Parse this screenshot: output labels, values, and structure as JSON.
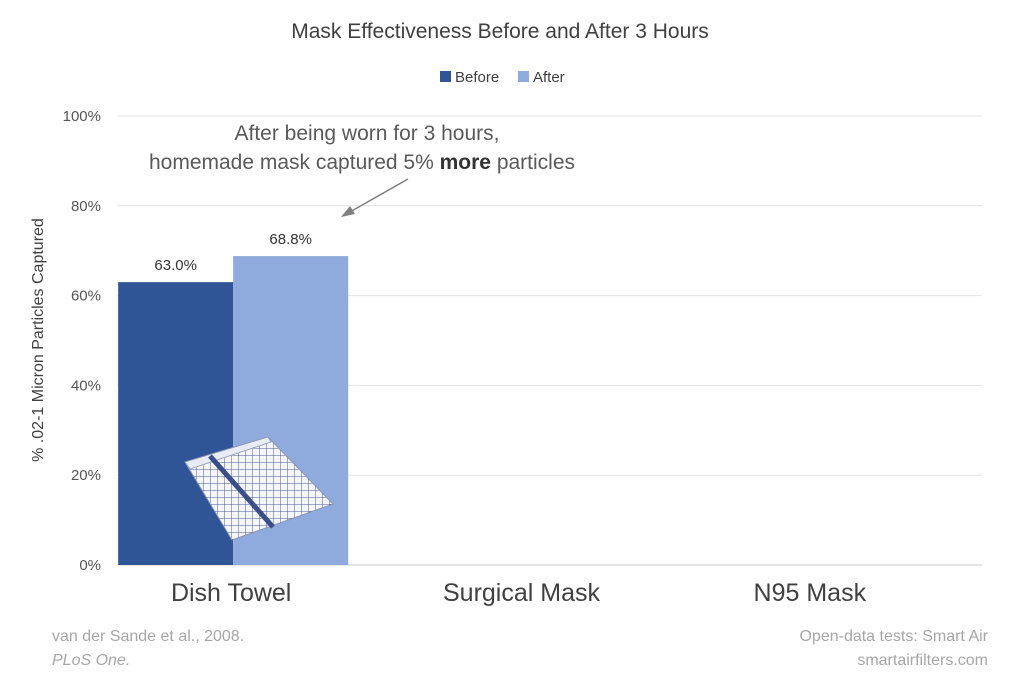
{
  "chart_data": {
    "type": "bar",
    "title": "Mask Effectiveness Before and After 3 Hours",
    "xlabel": "",
    "ylabel": "% .02-1 Micron Particles Captured",
    "categories": [
      "Dish Towel",
      "Surgical Mask",
      "N95 Mask"
    ],
    "series": [
      {
        "name": "Before",
        "color": "#2f5597",
        "values": [
          63.0,
          null,
          null
        ]
      },
      {
        "name": "After",
        "color": "#8faadc",
        "values": [
          68.8,
          null,
          null
        ]
      }
    ],
    "data_labels": [
      "63.0%",
      "68.8%"
    ],
    "ylim": [
      0,
      100
    ],
    "yticks": [
      "0%",
      "20%",
      "40%",
      "60%",
      "80%",
      "100%"
    ],
    "ytick_values": [
      0,
      20,
      40,
      60,
      80,
      100
    ],
    "grid": true,
    "legend_position": "top-center",
    "annotation": {
      "line1": "After being worn for 3 hours,",
      "line2_pre": "homemade mask captured 5% ",
      "line2_bold": "more",
      "line2_post": " particles"
    },
    "image_icon": "dish-towel-image"
  },
  "footer": {
    "left_line1": "van der Sande et al., 2008.",
    "left_line2": "PLoS One.",
    "right_line1": "Open-data tests: Smart Air",
    "right_line2": "smartairfilters.com"
  }
}
